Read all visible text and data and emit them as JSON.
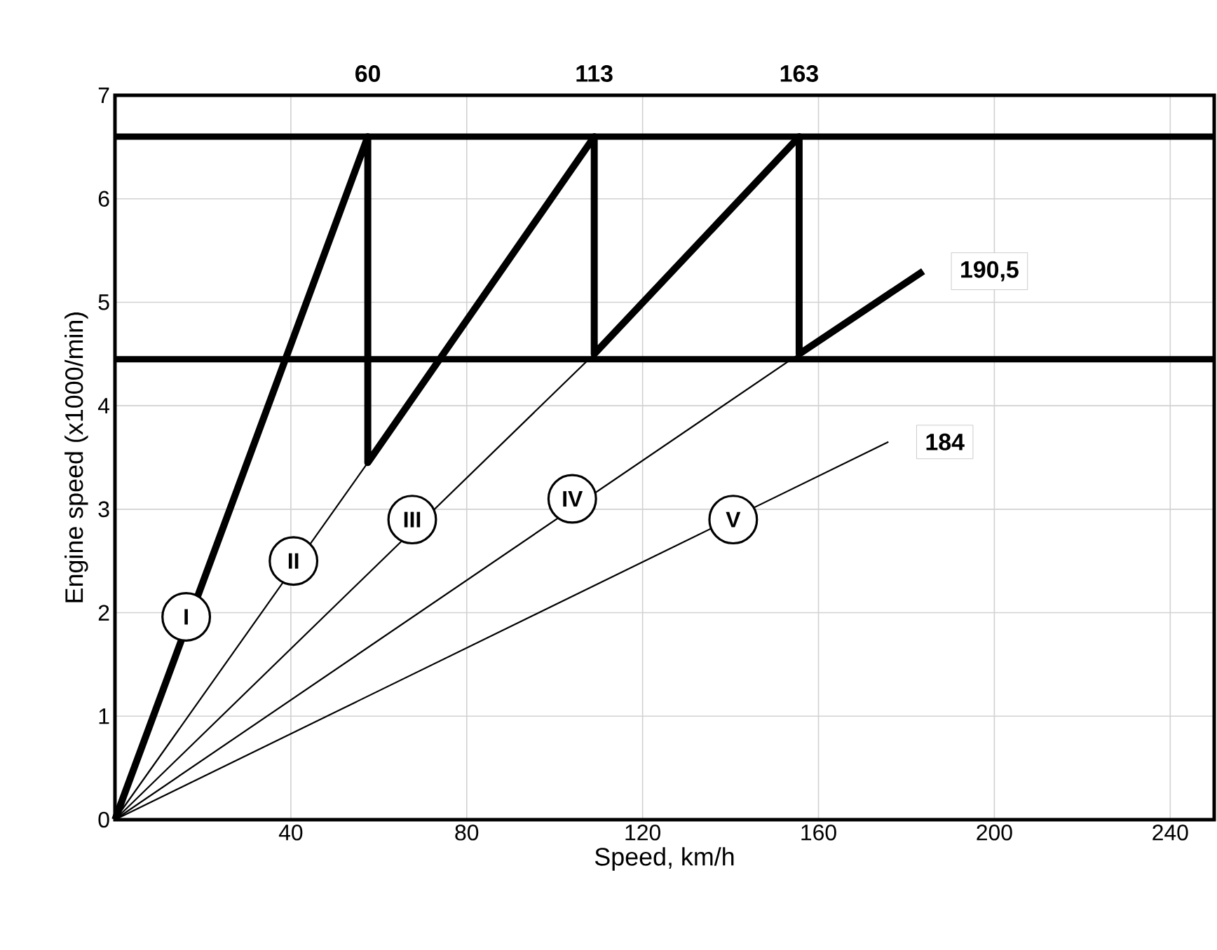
{
  "chart_data": {
    "type": "line",
    "xlabel": "Speed, km/h",
    "ylabel": "Engine speed (x1000/min)",
    "xlim": [
      0,
      250
    ],
    "ylim": [
      0,
      7
    ],
    "xticks": [
      40,
      80,
      120,
      160,
      200,
      240
    ],
    "yticks": [
      0,
      1,
      2,
      3,
      4,
      5,
      6,
      7
    ],
    "grid": true,
    "series": [
      {
        "color": "#000000",
        "x": [
          0,
          57.5,
          57.5,
          109,
          109,
          155.6,
          155.6,
          183.8
        ],
        "values": [
          0,
          6.6,
          3.45,
          6.6,
          4.5,
          6.6,
          4.5,
          5.3
        ]
      },
      {
        "color": "#000000",
        "x": [
          0,
          57.5
        ],
        "values": [
          0,
          3.45
        ]
      },
      {
        "color": "#000000",
        "x": [
          0,
          109
        ],
        "values": [
          0,
          4.5
        ]
      },
      {
        "color": "#000000",
        "x": [
          0,
          155.6
        ],
        "values": [
          0,
          4.5
        ]
      },
      {
        "color": "#000000",
        "x": [
          0,
          175.9
        ],
        "values": [
          0,
          3.65
        ]
      }
    ],
    "ref_lines": [
      {
        "axis": "y",
        "value": 6.6,
        "color": "#000000"
      },
      {
        "axis": "y",
        "value": 4.45,
        "color": "#000000"
      }
    ],
    "annotations": [
      {
        "text": "I",
        "x": 16.2,
        "y": 1.96
      },
      {
        "text": "II",
        "x": 40.6,
        "y": 2.5
      },
      {
        "text": "III",
        "x": 67.6,
        "y": 2.9
      },
      {
        "text": "IV",
        "x": 104,
        "y": 3.1
      },
      {
        "text": "V",
        "x": 140.6,
        "y": 2.9
      },
      {
        "text": "190,5",
        "x": 183.8,
        "y": 5.3
      },
      {
        "text": "184",
        "x": 175.9,
        "y": 3.65
      },
      {
        "text": "60",
        "x": 57.5,
        "y": 6.6
      },
      {
        "text": "113",
        "x": 109,
        "y": 6.6
      },
      {
        "text": "163",
        "x": 155.6,
        "y": 6.6
      }
    ]
  }
}
